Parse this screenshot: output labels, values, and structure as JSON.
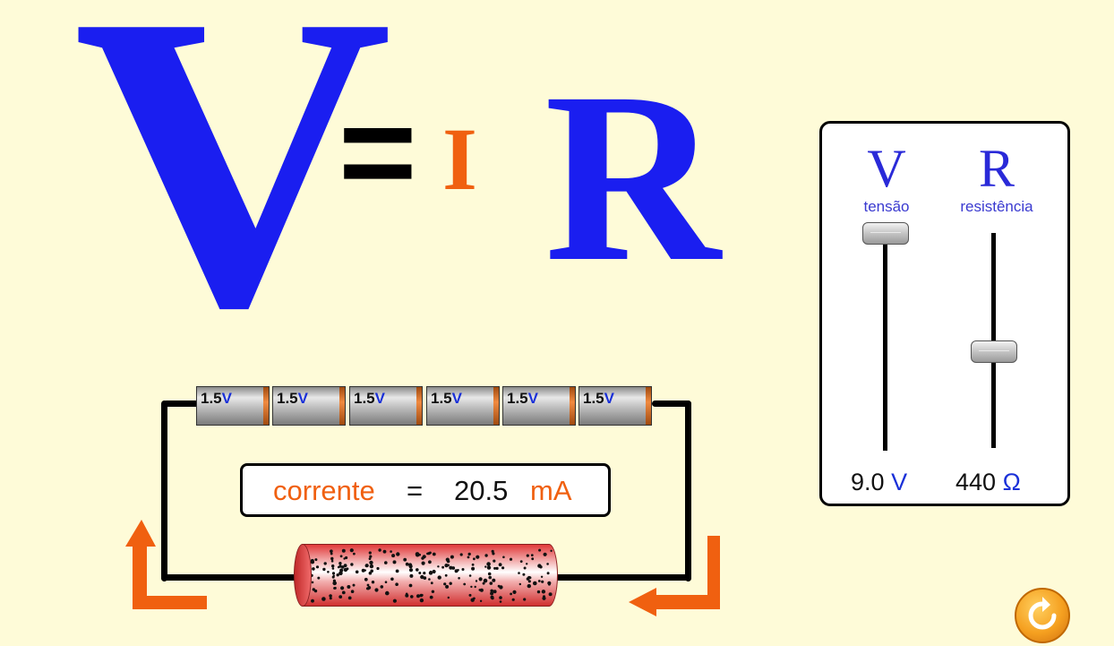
{
  "equation": {
    "v": "V",
    "equals": "=",
    "i": "I",
    "r": "R"
  },
  "colors": {
    "blue": "#1a1ef0",
    "orange": "#f06010",
    "background": "#fefbd8"
  },
  "controls": {
    "voltage": {
      "letter": "V",
      "label": "tensão",
      "value": "9.0",
      "unit": "V",
      "slider_fraction": 1.0
    },
    "resistance": {
      "letter": "R",
      "label": "resistência",
      "value": "440",
      "unit": "Ω",
      "slider_fraction": 0.44
    }
  },
  "batteries": [
    {
      "value": "1.5",
      "unit": "V"
    },
    {
      "value": "1.5",
      "unit": "V"
    },
    {
      "value": "1.5",
      "unit": "V"
    },
    {
      "value": "1.5",
      "unit": "V"
    },
    {
      "value": "1.5",
      "unit": "V"
    },
    {
      "value": "1.5",
      "unit": "V"
    }
  ],
  "current": {
    "label": "corrente",
    "equals": "=",
    "value": "20.5",
    "unit": "mA"
  },
  "icons": {
    "reset": "reset-icon",
    "flow_arrow": "arrow-icon"
  }
}
